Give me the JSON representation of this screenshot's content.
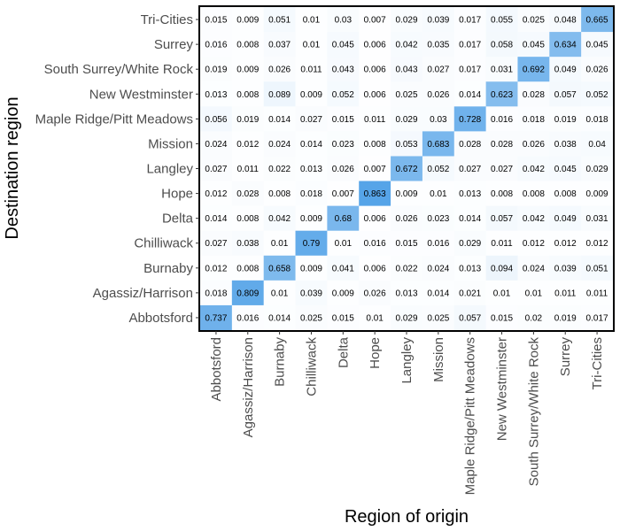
{
  "chart_data": {
    "type": "heatmap",
    "xlabel": "Region of origin",
    "ylabel": "Destination region",
    "x_categories": [
      "Abbotsford",
      "Agassiz/Harrison",
      "Burnaby",
      "Chilliwack",
      "Delta",
      "Hope",
      "Langley",
      "Mission",
      "Maple Ridge/Pitt Meadows",
      "New Westminster",
      "South Surrey/White Rock",
      "Surrey",
      "Tri-Cities"
    ],
    "y_categories": [
      "Tri-Cities",
      "Surrey",
      "South Surrey/White Rock",
      "New Westminster",
      "Maple Ridge/Pitt Meadows",
      "Mission",
      "Langley",
      "Hope",
      "Delta",
      "Chilliwack",
      "Burnaby",
      "Agassiz/Harrison",
      "Abbotsford"
    ],
    "values": [
      [
        0.015,
        0.009,
        0.051,
        0.01,
        0.03,
        0.007,
        0.029,
        0.039,
        0.017,
        0.055,
        0.025,
        0.048,
        0.665
      ],
      [
        0.016,
        0.008,
        0.037,
        0.01,
        0.045,
        0.006,
        0.042,
        0.035,
        0.017,
        0.058,
        0.045,
        0.634,
        0.045
      ],
      [
        0.019,
        0.009,
        0.026,
        0.011,
        0.043,
        0.006,
        0.043,
        0.027,
        0.017,
        0.031,
        0.692,
        0.049,
        0.026
      ],
      [
        0.013,
        0.008,
        0.089,
        0.009,
        0.052,
        0.006,
        0.025,
        0.026,
        0.014,
        0.623,
        0.028,
        0.057,
        0.052
      ],
      [
        0.056,
        0.019,
        0.014,
        0.027,
        0.015,
        0.011,
        0.029,
        0.03,
        0.728,
        0.016,
        0.018,
        0.019,
        0.018
      ],
      [
        0.024,
        0.012,
        0.024,
        0.014,
        0.023,
        0.008,
        0.053,
        0.683,
        0.028,
        0.028,
        0.026,
        0.038,
        0.04
      ],
      [
        0.027,
        0.011,
        0.022,
        0.013,
        0.026,
        0.007,
        0.672,
        0.052,
        0.027,
        0.027,
        0.042,
        0.045,
        0.029
      ],
      [
        0.012,
        0.028,
        0.008,
        0.018,
        0.007,
        0.863,
        0.009,
        0.01,
        0.013,
        0.008,
        0.008,
        0.008,
        0.009
      ],
      [
        0.014,
        0.008,
        0.042,
        0.009,
        0.68,
        0.006,
        0.026,
        0.023,
        0.014,
        0.057,
        0.042,
        0.049,
        0.031
      ],
      [
        0.027,
        0.038,
        0.01,
        0.79,
        0.01,
        0.016,
        0.015,
        0.016,
        0.029,
        0.011,
        0.012,
        0.012,
        0.012
      ],
      [
        0.012,
        0.008,
        0.658,
        0.009,
        0.041,
        0.006,
        0.022,
        0.024,
        0.013,
        0.094,
        0.024,
        0.039,
        0.051
      ],
      [
        0.018,
        0.809,
        0.01,
        0.039,
        0.009,
        0.026,
        0.013,
        0.014,
        0.021,
        0.01,
        0.01,
        0.011,
        0.011
      ],
      [
        0.737,
        0.016,
        0.014,
        0.025,
        0.015,
        0.01,
        0.029,
        0.025,
        0.057,
        0.015,
        0.02,
        0.019,
        0.017
      ]
    ],
    "color_low": "#ffffff",
    "color_high": "#56a4e8",
    "grid": false,
    "legend": "none"
  }
}
